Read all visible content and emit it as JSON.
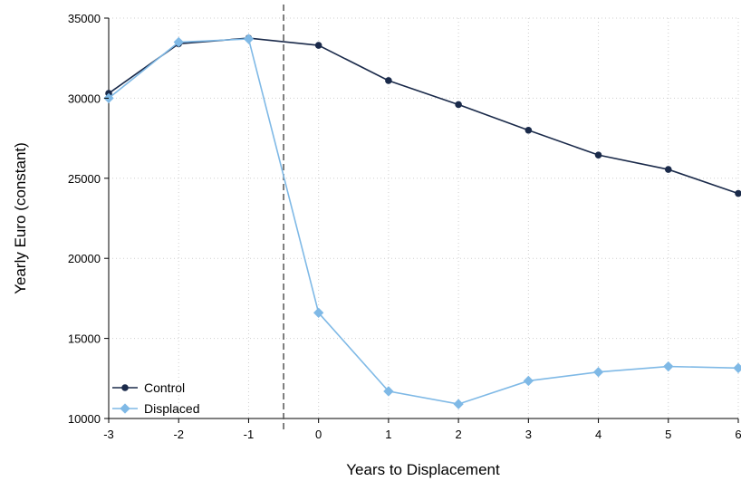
{
  "chart_data": {
    "type": "line",
    "title": "",
    "xlabel": "Years to Displacement",
    "ylabel": "Yearly Euro (constant)",
    "x": [
      -3,
      -2,
      -1,
      0,
      1,
      2,
      3,
      4,
      5,
      6
    ],
    "xticks": [
      "-3",
      "-2",
      "-1",
      "0",
      "1",
      "2",
      "3",
      "4",
      "5",
      "6"
    ],
    "yticks": [
      "10000",
      "15000",
      "20000",
      "25000",
      "30000",
      "35000"
    ],
    "xlim": [
      -3,
      6
    ],
    "ylim": [
      10000,
      35000
    ],
    "grid": true,
    "event_line_x": -0.5,
    "legend_position": "bottom-left",
    "series": [
      {
        "name": "Control",
        "color": "#1a2a4a",
        "marker": "circle",
        "values": [
          30300,
          33400,
          33750,
          33300,
          31100,
          29600,
          28000,
          26450,
          25550,
          24050
        ]
      },
      {
        "name": "Displaced",
        "color": "#7fb9e6",
        "marker": "diamond",
        "values": [
          30000,
          33500,
          33700,
          16600,
          11700,
          10900,
          12350,
          12900,
          13250,
          13150
        ]
      }
    ]
  }
}
